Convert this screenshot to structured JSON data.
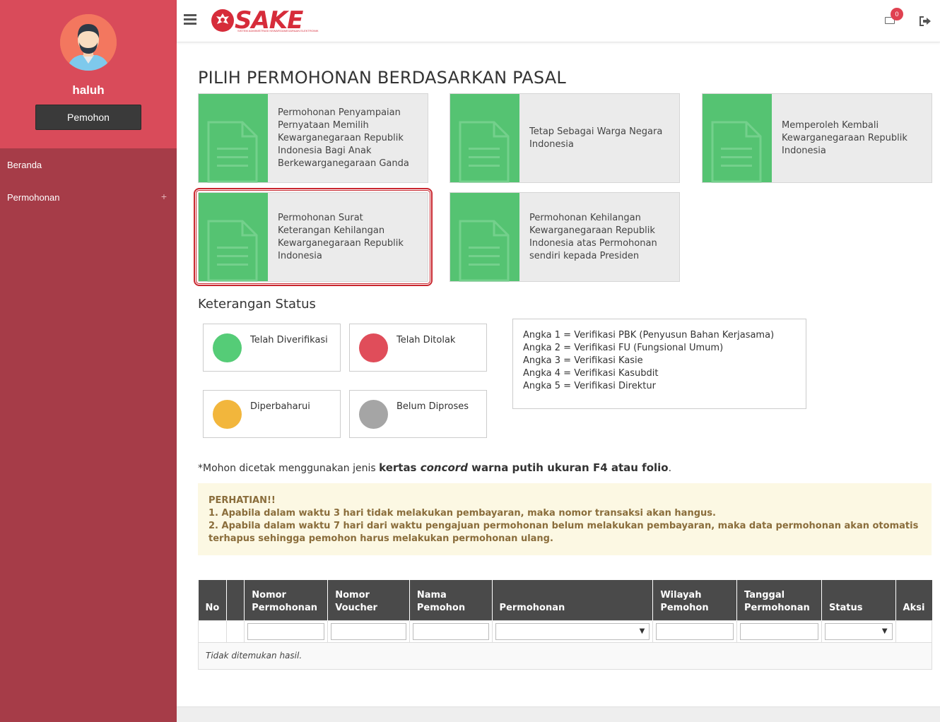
{
  "sidebar": {
    "username": "haluh",
    "role_label": "Pemohon",
    "items": [
      {
        "label": "Beranda"
      },
      {
        "label": "Permohonan",
        "expand": "+"
      }
    ]
  },
  "header": {
    "logo_text": "SAKE",
    "logo_subtitle": "SISTEM ADMINISTRASI KEWARGANEGARAAN ELEKTRONIK",
    "mail_count": "0"
  },
  "main": {
    "title": "PILIH PERMOHONAN BERDASARKAN PASAL",
    "cards": [
      {
        "label": "Permohonan Penyampaian Pernyataan Memilih Kewarganegaraan Republik Indonesia Bagi Anak Berkewarganegaraan Ganda"
      },
      {
        "label": "Tetap Sebagai Warga Negara Indonesia"
      },
      {
        "label": "Memperoleh Kembali Kewarganegaraan Republik Indonesia"
      },
      {
        "label": "Permohonan Surat Keterangan Kehilangan Kewarganegaraan Republik Indonesia"
      },
      {
        "label": "Permohonan Kehilangan Kewarganegaraan Republik Indonesia atas Permohonan sendiri kepada Presiden"
      }
    ],
    "status_title": "Keterangan Status",
    "statuses": [
      {
        "label": "Telah Diverifikasi",
        "color": "#55cc77"
      },
      {
        "label": "Telah Ditolak",
        "color": "#e04d5a"
      },
      {
        "label": "Diperbaharui",
        "color": "#f2b63c"
      },
      {
        "label": "Belum Diproses",
        "color": "#a5a5a5"
      }
    ],
    "legend": [
      "Angka 1 = Verifikasi PBK (Penyusun Bahan Kerjasama)",
      "Angka 2 = Verifikasi FU (Fungsional Umum)",
      "Angka 3 = Verifikasi Kasie",
      "Angka 4 = Verifikasi Kasubdit",
      "Angka 5 = Verifikasi Direktur"
    ],
    "note": {
      "prefix": "*Mohon dicetak menggunakan jenis ",
      "bold1": "kertas ",
      "italic": "concord",
      "bold2": " warna putih ukuran F4 atau folio",
      "suffix": "."
    },
    "warning": {
      "title": "PERHATIAN!!",
      "line1": "1. Apabila dalam waktu 3 hari tidak melakukan pembayaran, maka nomor transaksi akan hangus.",
      "line2": "2. Apabila dalam waktu 7 hari dari waktu pengajuan permohonan belum melakukan pembayaran, maka data permohonan akan otomatis terhapus sehingga pemohon harus melakukan permohonan ulang."
    }
  },
  "table": {
    "headers": {
      "no": "No",
      "nomor_permohonan": [
        "Nomor",
        "Permohonan"
      ],
      "nomor_voucher": [
        "Nomor",
        "Voucher"
      ],
      "nama_pemohon": [
        "Nama",
        "Pemohon"
      ],
      "permohonan": "Permohonan",
      "wilayah_pemohon": [
        "Wilayah",
        "Pemohon"
      ],
      "tanggal_permohonan": [
        "Tanggal",
        "Permohonan"
      ],
      "status": "Status",
      "aksi": "Aksi"
    },
    "empty_text": "Tidak ditemukan hasil."
  },
  "colors": {
    "sidebar_top": "#d94b5a",
    "sidebar": "#a63c48",
    "card_icon": "#55c372",
    "highlight": "#c9272f"
  }
}
